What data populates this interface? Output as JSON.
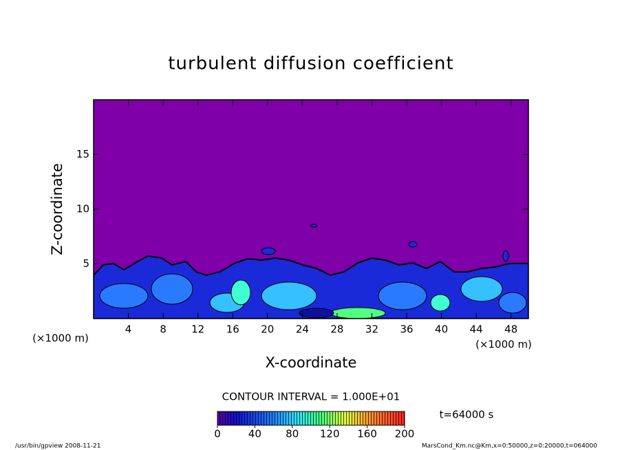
{
  "chart_data": {
    "type": "contour",
    "title": "turbulent diffusion coefficient",
    "xlabel": "X-coordinate",
    "ylabel": "Z-coordinate",
    "xunit": "(×1000 m)",
    "yunit": "(×1000 m)",
    "xlim": [
      0,
      50
    ],
    "xticks": [
      4,
      8,
      12,
      16,
      20,
      24,
      28,
      32,
      36,
      40,
      44,
      48
    ],
    "ylim": [
      0,
      20
    ],
    "yticks": [
      5,
      10,
      15
    ],
    "contour_interval": "CONTOUR INTERVAL = 1.000E+01",
    "colorbar": {
      "range": [
        0,
        200
      ],
      "ticks": [
        0,
        40,
        80,
        120,
        160,
        200
      ]
    },
    "time_label": "t=64000 s",
    "footer_left": "/usr/bin/gpview  2008-11-21",
    "footer_right": "MarsCond_Km.nc@Km,x=0:50000,z=0:20000,t=064000"
  }
}
